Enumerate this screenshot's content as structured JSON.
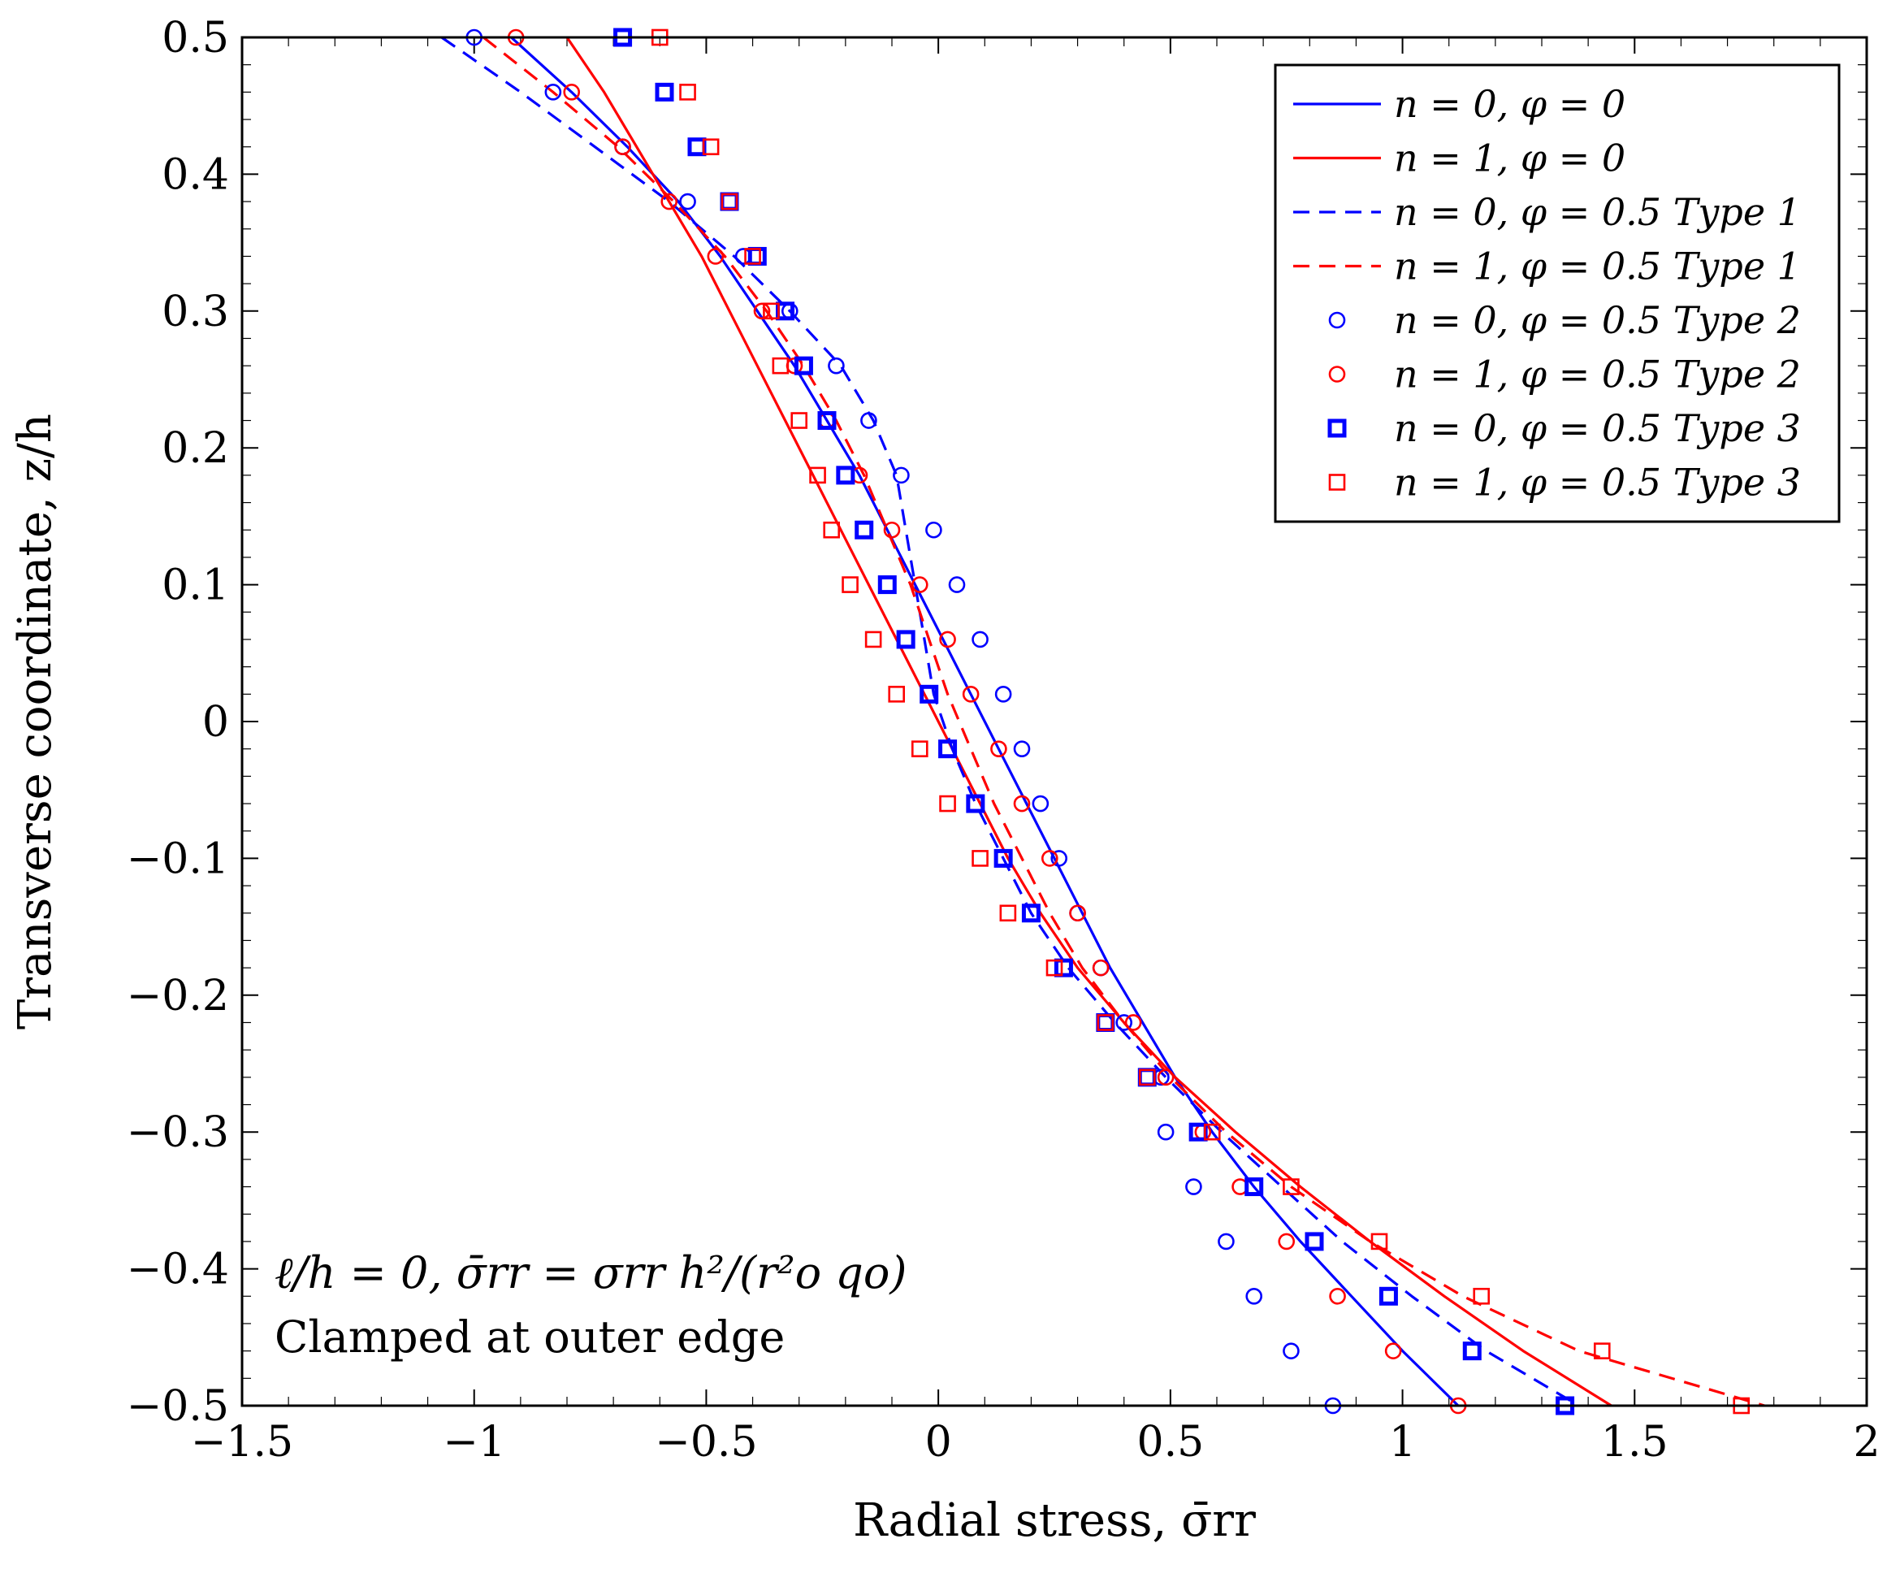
{
  "chart_data": {
    "type": "line",
    "xlabel": "Radial stress, σ̄rr",
    "ylabel": "Transverse coordinate, z/h",
    "xlim": [
      -1.5,
      2
    ],
    "ylim": [
      -0.5,
      0.5
    ],
    "xticks": [
      -1.5,
      -1,
      -0.5,
      0,
      0.5,
      1,
      1.5,
      2
    ],
    "xtick_labels": [
      "−1.5",
      "−1",
      "−0.5",
      "0",
      "0.5",
      "1",
      "1.5",
      "2"
    ],
    "yticks": [
      -0.5,
      -0.4,
      -0.3,
      -0.2,
      -0.1,
      0,
      0.1,
      0.2,
      0.3,
      0.4,
      0.5
    ],
    "ytick_labels": [
      "−0.5",
      "−0.4",
      "−0.3",
      "−0.2",
      "−0.1",
      "0",
      "0.1",
      "0.2",
      "0.3",
      "0.4",
      "0.5"
    ],
    "legend_position": "top-right",
    "annotation_line1": "ℓ/h = 0, σ̄rr = σrr h²/(r²o qo)",
    "annotation_line2": "Clamped at outer edge",
    "series": [
      {
        "name": "n = 0, φ = 0",
        "style": "solid",
        "marker": "none",
        "color": "#0000ff",
        "y": [
          0.5,
          0.46,
          0.42,
          0.38,
          0.34,
          0.3,
          0.26,
          0.22,
          0.18,
          0.14,
          0.1,
          0.06,
          0.02,
          -0.02,
          -0.06,
          -0.1,
          -0.14,
          -0.18,
          -0.22,
          -0.26,
          -0.3,
          -0.34,
          -0.38,
          -0.42,
          -0.46,
          -0.5
        ],
        "x": [
          -0.92,
          -0.79,
          -0.67,
          -0.56,
          -0.47,
          -0.39,
          -0.31,
          -0.24,
          -0.17,
          -0.11,
          -0.05,
          0.01,
          0.07,
          0.13,
          0.19,
          0.25,
          0.31,
          0.37,
          0.44,
          0.51,
          0.59,
          0.68,
          0.78,
          0.89,
          1.0,
          1.12
        ]
      },
      {
        "name": "n = 1, φ = 0",
        "style": "solid",
        "marker": "none",
        "color": "#ff0000",
        "y": [
          0.5,
          0.46,
          0.42,
          0.38,
          0.34,
          0.3,
          0.26,
          0.22,
          0.18,
          0.14,
          0.1,
          0.06,
          0.02,
          -0.02,
          -0.06,
          -0.1,
          -0.14,
          -0.18,
          -0.22,
          -0.26,
          -0.3,
          -0.34,
          -0.38,
          -0.42,
          -0.46,
          -0.5
        ],
        "x": [
          -0.8,
          -0.72,
          -0.65,
          -0.58,
          -0.51,
          -0.45,
          -0.39,
          -0.33,
          -0.27,
          -0.21,
          -0.15,
          -0.09,
          -0.03,
          0.03,
          0.09,
          0.15,
          0.22,
          0.3,
          0.4,
          0.51,
          0.64,
          0.78,
          0.93,
          1.09,
          1.26,
          1.45
        ]
      },
      {
        "name": "n = 0, φ = 0.5 Type 1",
        "style": "dashed",
        "marker": "none",
        "color": "#0000ff",
        "y": [
          0.5,
          0.46,
          0.42,
          0.38,
          0.34,
          0.3,
          0.26,
          0.22,
          0.18,
          0.14,
          0.1,
          0.06,
          0.02,
          -0.02,
          -0.06,
          -0.1,
          -0.14,
          -0.18,
          -0.22,
          -0.26,
          -0.3,
          -0.34,
          -0.38,
          -0.42,
          -0.46,
          -0.5
        ],
        "x": [
          -1.07,
          -0.9,
          -0.74,
          -0.58,
          -0.44,
          -0.32,
          -0.21,
          -0.14,
          -0.09,
          -0.07,
          -0.05,
          -0.03,
          -0.01,
          0.03,
          0.08,
          0.14,
          0.2,
          0.28,
          0.38,
          0.49,
          0.61,
          0.74,
          0.87,
          1.02,
          1.18,
          1.38
        ]
      },
      {
        "name": "n = 1, φ = 0.5 Type 1",
        "style": "dashed",
        "marker": "none",
        "color": "#ff0000",
        "y": [
          0.5,
          0.46,
          0.42,
          0.38,
          0.34,
          0.3,
          0.26,
          0.22,
          0.18,
          0.14,
          0.1,
          0.06,
          0.02,
          -0.02,
          -0.06,
          -0.1,
          -0.14,
          -0.18,
          -0.22,
          -0.26,
          -0.3,
          -0.34,
          -0.38,
          -0.42,
          -0.46,
          -0.5
        ],
        "x": [
          -0.98,
          -0.83,
          -0.69,
          -0.57,
          -0.46,
          -0.37,
          -0.29,
          -0.22,
          -0.16,
          -0.11,
          -0.06,
          -0.02,
          0.02,
          0.07,
          0.12,
          0.18,
          0.24,
          0.31,
          0.4,
          0.5,
          0.62,
          0.76,
          0.93,
          1.13,
          1.38,
          1.78
        ]
      },
      {
        "name": "n = 0, φ = 0.5 Type 2",
        "style": "none",
        "marker": "circle",
        "color": "#0000ff",
        "y": [
          0.5,
          0.46,
          0.42,
          0.38,
          0.34,
          0.3,
          0.26,
          0.22,
          0.18,
          0.14,
          0.1,
          0.06,
          0.02,
          -0.02,
          -0.06,
          -0.1,
          -0.14,
          -0.18,
          -0.22,
          -0.26,
          -0.3,
          -0.34,
          -0.38,
          -0.42,
          -0.46,
          -0.5
        ],
        "x": [
          -1.0,
          -0.83,
          -0.68,
          -0.54,
          -0.42,
          -0.32,
          -0.22,
          -0.15,
          -0.08,
          -0.01,
          0.04,
          0.09,
          0.14,
          0.18,
          0.22,
          0.26,
          0.3,
          0.35,
          0.4,
          0.48,
          0.49,
          0.55,
          0.62,
          0.68,
          0.76,
          0.85
        ]
      },
      {
        "name": "n = 1, φ = 0.5 Type 2",
        "style": "none",
        "marker": "circle",
        "color": "#ff0000",
        "y": [
          0.5,
          0.46,
          0.42,
          0.38,
          0.34,
          0.3,
          0.26,
          0.22,
          0.18,
          0.14,
          0.1,
          0.06,
          0.02,
          -0.02,
          -0.06,
          -0.1,
          -0.14,
          -0.18,
          -0.22,
          -0.26,
          -0.3,
          -0.34,
          -0.38,
          -0.42,
          -0.46,
          -0.5
        ],
        "x": [
          -0.91,
          -0.79,
          -0.68,
          -0.58,
          -0.48,
          -0.38,
          -0.31,
          -0.24,
          -0.17,
          -0.1,
          -0.04,
          0.02,
          0.07,
          0.13,
          0.18,
          0.24,
          0.3,
          0.35,
          0.42,
          0.49,
          0.57,
          0.65,
          0.75,
          0.86,
          0.98,
          1.12
        ]
      },
      {
        "name": "n = 0, φ = 0.5 Type 3",
        "style": "none",
        "marker": "square-thick",
        "color": "#0000ff",
        "y": [
          0.5,
          0.46,
          0.42,
          0.38,
          0.34,
          0.3,
          0.26,
          0.22,
          0.18,
          0.14,
          0.1,
          0.06,
          0.02,
          -0.02,
          -0.06,
          -0.1,
          -0.14,
          -0.18,
          -0.22,
          -0.26,
          -0.3,
          -0.34,
          -0.38,
          -0.42,
          -0.46,
          -0.5
        ],
        "x": [
          -0.68,
          -0.59,
          -0.52,
          -0.45,
          -0.39,
          -0.33,
          -0.29,
          -0.24,
          -0.2,
          -0.16,
          -0.11,
          -0.07,
          -0.02,
          0.02,
          0.08,
          0.14,
          0.2,
          0.27,
          0.36,
          0.45,
          0.56,
          0.68,
          0.81,
          0.97,
          1.15,
          1.35
        ]
      },
      {
        "name": "n = 1, φ = 0.5 Type 3",
        "style": "none",
        "marker": "square",
        "color": "#ff0000",
        "y": [
          0.5,
          0.46,
          0.42,
          0.38,
          0.34,
          0.3,
          0.26,
          0.22,
          0.18,
          0.14,
          0.1,
          0.06,
          0.02,
          -0.02,
          -0.06,
          -0.1,
          -0.14,
          -0.18,
          -0.22,
          -0.26,
          -0.3,
          -0.34,
          -0.38,
          -0.42,
          -0.46,
          -0.5
        ],
        "x": [
          -0.6,
          -0.54,
          -0.49,
          -0.45,
          -0.4,
          -0.36,
          -0.34,
          -0.3,
          -0.26,
          -0.23,
          -0.19,
          -0.14,
          -0.09,
          -0.04,
          0.02,
          0.09,
          0.15,
          0.25,
          0.36,
          0.45,
          0.59,
          0.76,
          0.95,
          1.17,
          1.43,
          1.73
        ]
      }
    ]
  }
}
